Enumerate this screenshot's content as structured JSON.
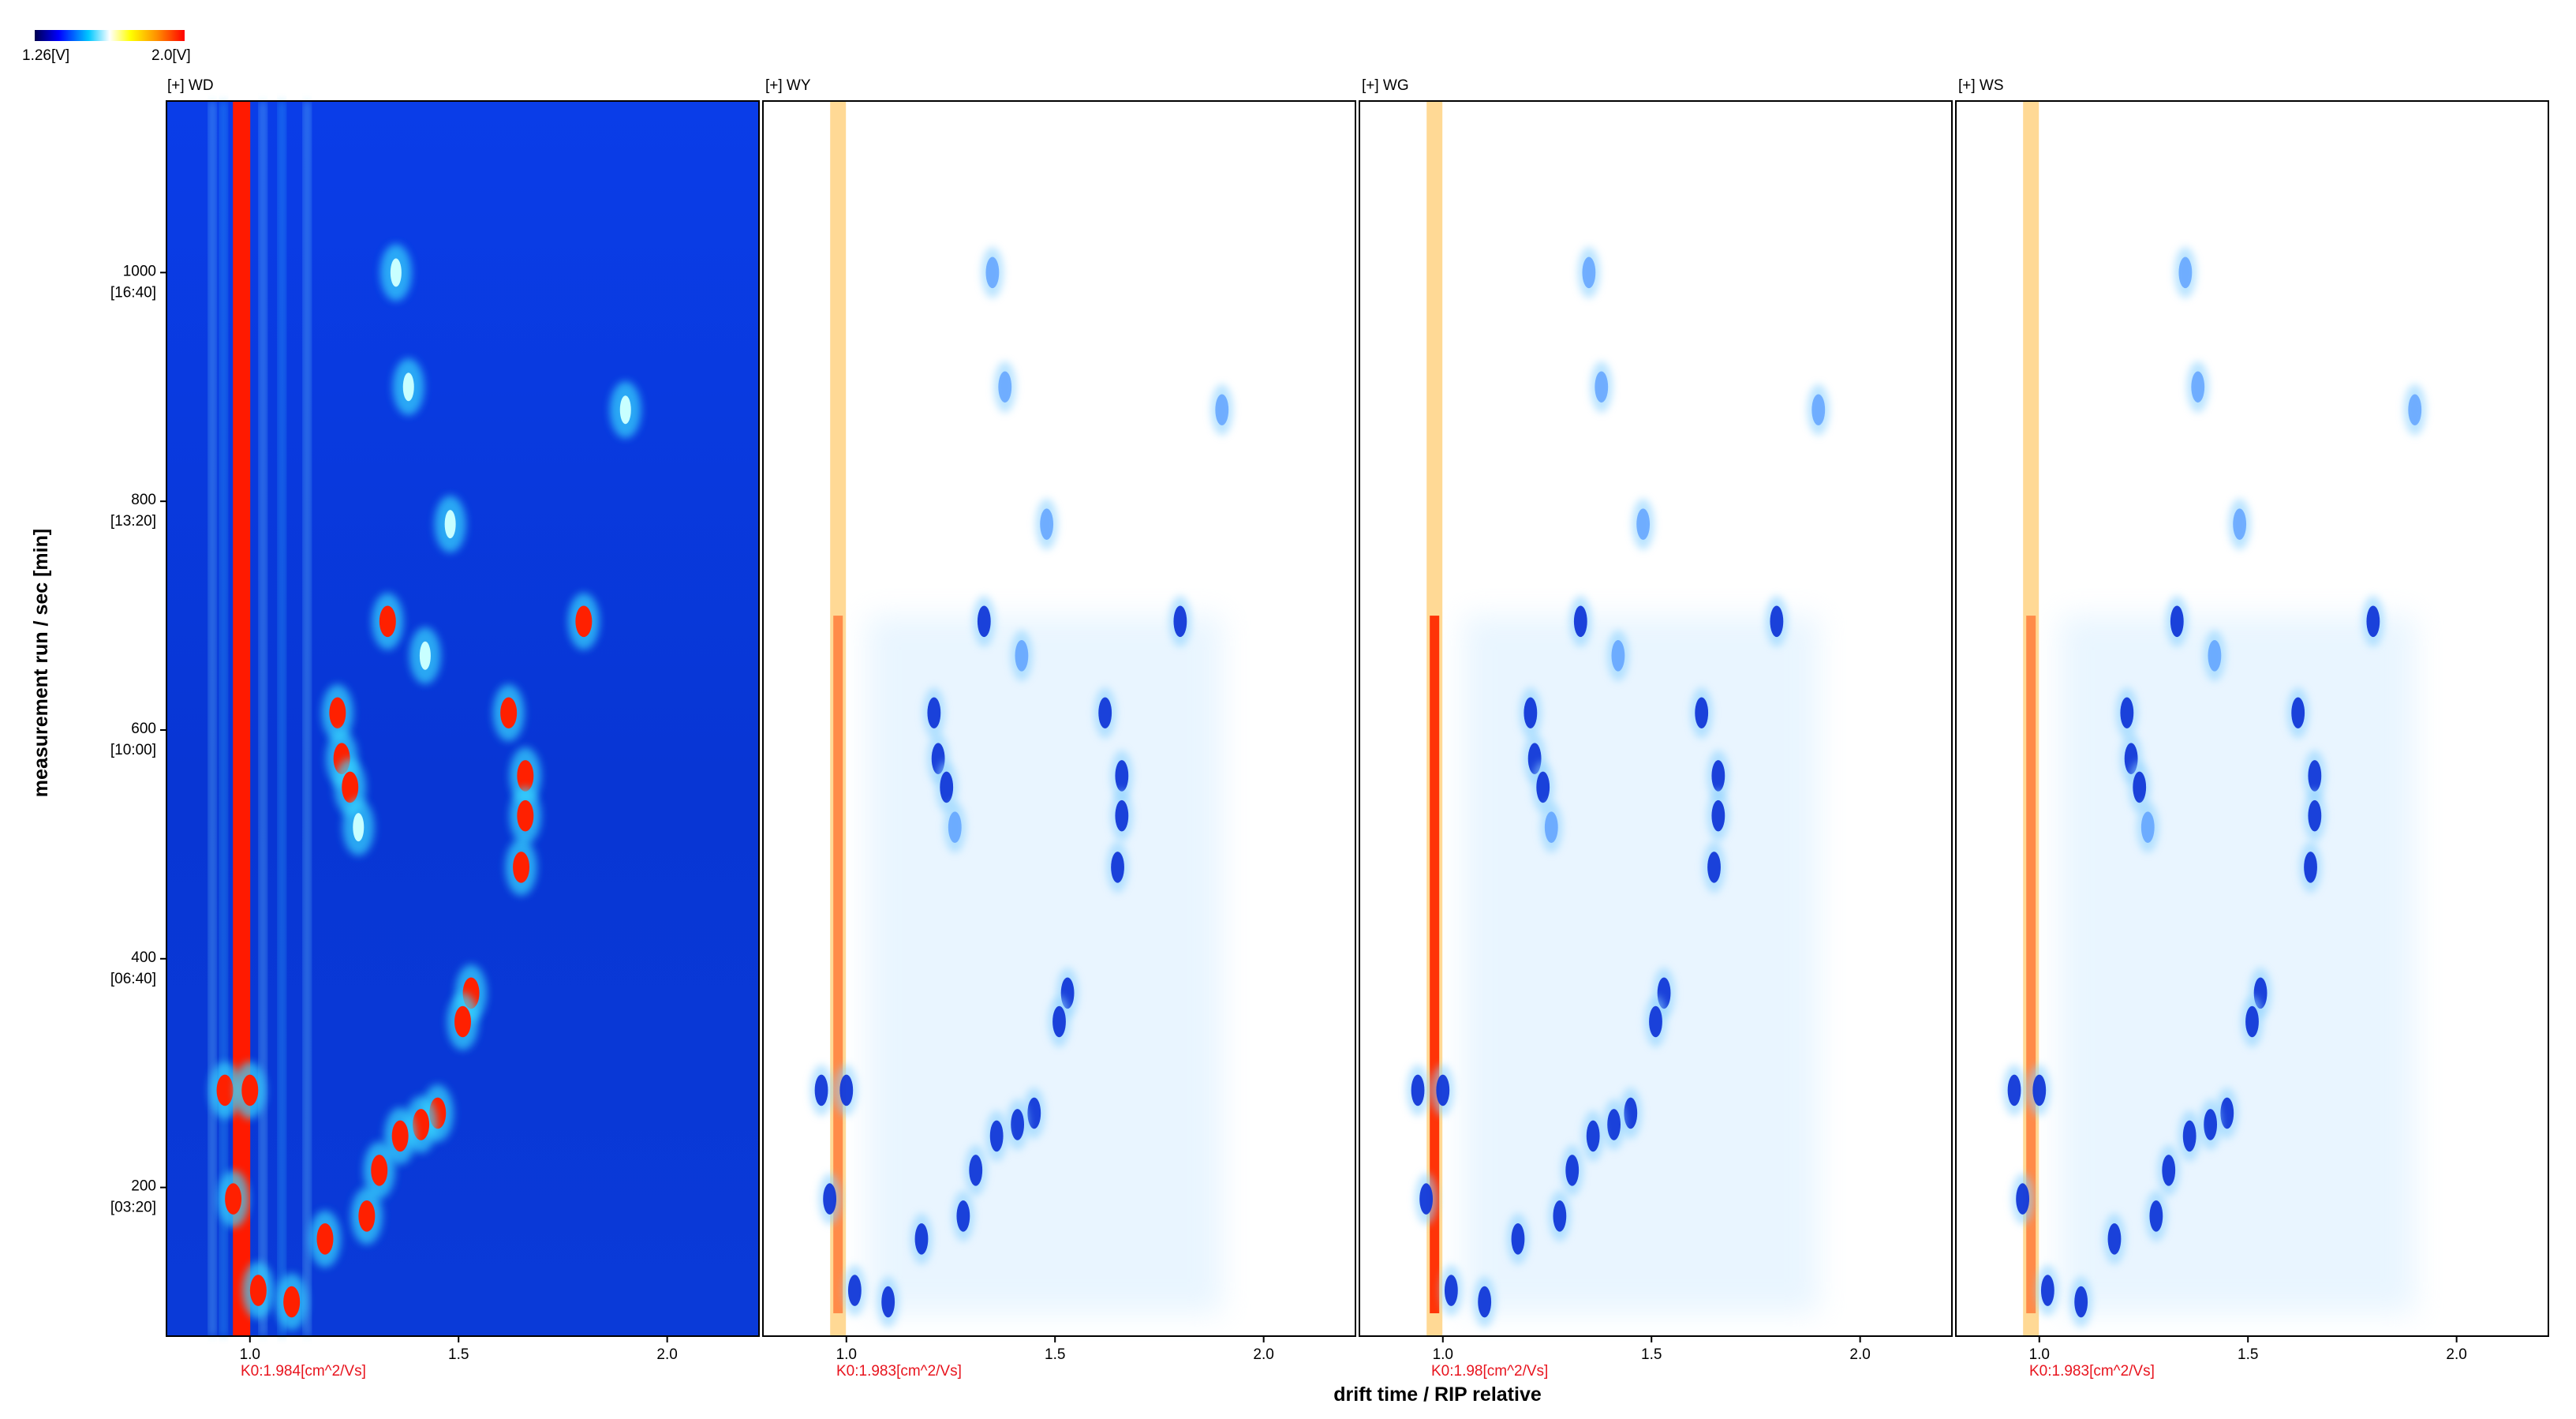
{
  "chart_data": {
    "type": "heatmap",
    "xlabel": "drift time / RIP relative",
    "ylabel": "measurement run / sec [min]",
    "xlim": [
      0.8,
      2.22
    ],
    "ylim": [
      70,
      1150
    ],
    "x_ticks": [
      {
        "value": 1.0,
        "label": "1.0"
      },
      {
        "value": 1.5,
        "label": "1.5"
      },
      {
        "value": 2.0,
        "label": "2.0"
      }
    ],
    "y_ticks": [
      {
        "value": 200,
        "label": "200",
        "sublabel": "[03:20]"
      },
      {
        "value": 400,
        "label": "400",
        "sublabel": "[06:40]"
      },
      {
        "value": 600,
        "label": "600",
        "sublabel": "[10:00]"
      },
      {
        "value": 800,
        "label": "800",
        "sublabel": "[13:20]"
      },
      {
        "value": 1000,
        "label": "1000",
        "sublabel": "[16:40]"
      }
    ],
    "color_scale": {
      "min_label": "1.26[V]",
      "max_label": "2.0[V]",
      "colors": [
        "#000050",
        "#0000ff",
        "#00c8ff",
        "#ffffff",
        "#ffff00",
        "#ff8c00",
        "#ff0000"
      ]
    },
    "panels": [
      {
        "name": "WD",
        "label": "[+] WD",
        "k0": "K0:1.984[cm^2/Vs]",
        "mode": "reference"
      },
      {
        "name": "WY",
        "label": "[+] WY",
        "k0": "K0:1.983[cm^2/Vs]",
        "mode": "difference"
      },
      {
        "name": "WG",
        "label": "[+] WG",
        "k0": "K0:1.98[cm^2/Vs]",
        "mode": "difference"
      },
      {
        "name": "WS",
        "label": "[+] WS",
        "k0": "K0:1.983[cm^2/Vs]",
        "mode": "difference"
      }
    ],
    "rip_line": {
      "x": 0.98
    },
    "peaks": [
      {
        "x": 1.35,
        "y": 1000,
        "intensity": 0.5
      },
      {
        "x": 1.38,
        "y": 900,
        "intensity": 0.6
      },
      {
        "x": 1.9,
        "y": 880,
        "intensity": 0.45
      },
      {
        "x": 1.48,
        "y": 780,
        "intensity": 0.6
      },
      {
        "x": 1.33,
        "y": 695,
        "intensity": 1.0
      },
      {
        "x": 1.8,
        "y": 695,
        "intensity": 1.0
      },
      {
        "x": 1.42,
        "y": 665,
        "intensity": 0.7
      },
      {
        "x": 1.21,
        "y": 615,
        "intensity": 1.0
      },
      {
        "x": 1.62,
        "y": 615,
        "intensity": 1.0
      },
      {
        "x": 1.22,
        "y": 575,
        "intensity": 1.0
      },
      {
        "x": 1.24,
        "y": 550,
        "intensity": 0.9
      },
      {
        "x": 1.66,
        "y": 560,
        "intensity": 1.0
      },
      {
        "x": 1.66,
        "y": 525,
        "intensity": 1.0
      },
      {
        "x": 1.26,
        "y": 515,
        "intensity": 0.8
      },
      {
        "x": 1.65,
        "y": 480,
        "intensity": 1.0
      },
      {
        "x": 1.53,
        "y": 370,
        "intensity": 1.0
      },
      {
        "x": 1.51,
        "y": 345,
        "intensity": 1.0
      },
      {
        "x": 0.94,
        "y": 285,
        "intensity": 1.0
      },
      {
        "x": 1.0,
        "y": 285,
        "intensity": 1.0
      },
      {
        "x": 1.45,
        "y": 265,
        "intensity": 0.9
      },
      {
        "x": 1.41,
        "y": 255,
        "intensity": 1.0
      },
      {
        "x": 1.36,
        "y": 245,
        "intensity": 1.0
      },
      {
        "x": 1.31,
        "y": 215,
        "intensity": 1.0
      },
      {
        "x": 1.28,
        "y": 175,
        "intensity": 1.0
      },
      {
        "x": 0.96,
        "y": 190,
        "intensity": 1.0
      },
      {
        "x": 1.18,
        "y": 155,
        "intensity": 1.0
      },
      {
        "x": 1.02,
        "y": 110,
        "intensity": 1.0
      },
      {
        "x": 1.1,
        "y": 100,
        "intensity": 1.0
      }
    ]
  }
}
